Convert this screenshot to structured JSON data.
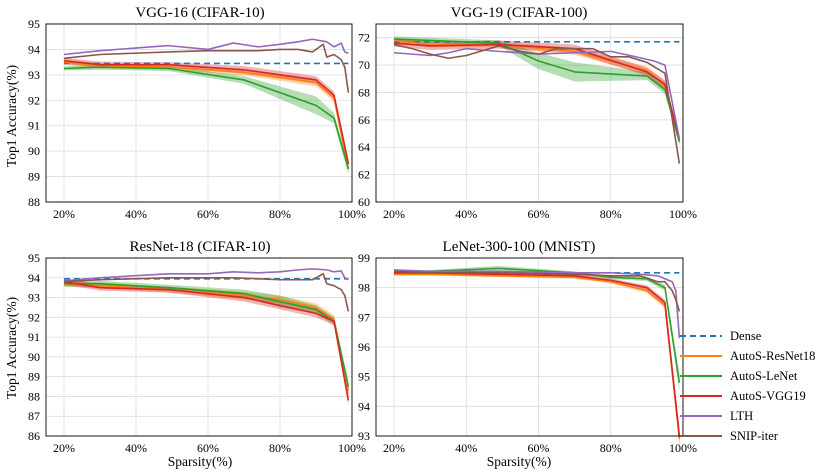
{
  "legend": [
    "Dense",
    "AutoS-ResNet18",
    "AutoS-LeNet",
    "AutoS-VGG19",
    "LTH",
    "SNIP-iter"
  ],
  "colors": {
    "Dense": "#1f77b4",
    "AutoS-ResNet18": "#ff7f0e",
    "AutoS-LeNet": "#2ca02c",
    "AutoS-VGG19": "#d62728",
    "LTH": "#9467bd",
    "SNIP-iter": "#8c564b"
  },
  "chart_data": [
    {
      "type": "line",
      "title": "VGG-16 (CIFAR-10)",
      "xlabel": "",
      "ylabel": "Top1 Accuracy(%)",
      "xlim": [
        15,
        100
      ],
      "ylim": [
        88,
        95
      ],
      "xticks": [
        20,
        40,
        60,
        80,
        100
      ],
      "xtick_labels": [
        "20%",
        "40%",
        "60%",
        "80%",
        "100%"
      ],
      "yticks": [
        88,
        89,
        90,
        91,
        92,
        93,
        94,
        95
      ],
      "ytick_labels": [
        "88",
        "89",
        "90",
        "91",
        "92",
        "93",
        "94",
        "95"
      ],
      "series": [
        {
          "name": "Dense",
          "x": [
            20,
            99
          ],
          "y": [
            93.45,
            93.45
          ],
          "dashed": true
        },
        {
          "name": "AutoS-ResNet18",
          "x": [
            20,
            30,
            49,
            70,
            90,
            95,
            99
          ],
          "y": [
            93.5,
            93.35,
            93.3,
            93.1,
            92.7,
            92.1,
            89.3
          ],
          "band": [
            0.12,
            0.1,
            0.1,
            0.12,
            0.15,
            0.15,
            0.2
          ]
        },
        {
          "name": "AutoS-LeNet",
          "x": [
            20,
            30,
            49,
            70,
            90,
            95,
            99
          ],
          "y": [
            93.25,
            93.3,
            93.25,
            92.8,
            91.8,
            91.3,
            89.3
          ],
          "band": [
            0.08,
            0.1,
            0.1,
            0.15,
            0.35,
            0.2,
            0.2
          ]
        },
        {
          "name": "AutoS-VGG19",
          "x": [
            20,
            30,
            49,
            70,
            90,
            95,
            99
          ],
          "y": [
            93.55,
            93.4,
            93.4,
            93.2,
            92.8,
            92.2,
            89.5
          ],
          "band": [
            0.12,
            0.12,
            0.1,
            0.15,
            0.15,
            0.15,
            0.2
          ]
        },
        {
          "name": "LTH",
          "x": [
            20,
            30,
            49,
            60,
            67,
            74,
            80,
            85,
            89,
            93,
            95,
            97,
            98,
            99
          ],
          "y": [
            93.8,
            93.95,
            94.15,
            94.0,
            94.25,
            94.1,
            94.2,
            94.3,
            94.4,
            94.3,
            94.1,
            94.25,
            93.9,
            93.85
          ]
        },
        {
          "name": "SNIP-iter",
          "x": [
            20,
            30,
            49,
            60,
            67,
            74,
            80,
            85,
            89,
            92,
            93,
            95,
            97,
            98,
            99
          ],
          "y": [
            93.65,
            93.8,
            93.9,
            93.95,
            93.95,
            93.95,
            94.0,
            94.0,
            93.9,
            94.2,
            93.7,
            93.8,
            93.6,
            93.3,
            92.3
          ]
        }
      ]
    },
    {
      "type": "line",
      "title": "VGG-19 (CIFAR-100)",
      "xlabel": "",
      "ylabel": "",
      "xlim": [
        15,
        100
      ],
      "ylim": [
        60,
        73
      ],
      "xticks": [
        20,
        40,
        60,
        80,
        100
      ],
      "xtick_labels": [
        "20%",
        "40%",
        "60%",
        "80%",
        "100%"
      ],
      "yticks": [
        60,
        62,
        64,
        66,
        68,
        70,
        72
      ],
      "ytick_labels": [
        "60",
        "62",
        "64",
        "66",
        "68",
        "70",
        "72"
      ],
      "series": [
        {
          "name": "Dense",
          "x": [
            20,
            99
          ],
          "y": [
            71.7,
            71.7
          ],
          "dashed": true
        },
        {
          "name": "AutoS-ResNet18",
          "x": [
            20,
            30,
            49,
            70,
            90,
            95,
            99
          ],
          "y": [
            71.8,
            71.5,
            71.5,
            71.0,
            69.6,
            68.5,
            64.5
          ],
          "band": [
            0.2,
            0.2,
            0.2,
            0.25,
            0.3,
            0.3,
            0.3
          ]
        },
        {
          "name": "AutoS-LeNet",
          "x": [
            20,
            30,
            49,
            60,
            70,
            90,
            95,
            99
          ],
          "y": [
            71.9,
            71.8,
            71.6,
            70.3,
            69.5,
            69.2,
            68.2,
            64.4
          ],
          "band": [
            0.2,
            0.2,
            0.2,
            0.6,
            0.7,
            0.3,
            0.3,
            0.3
          ]
        },
        {
          "name": "AutoS-VGG19",
          "x": [
            20,
            30,
            49,
            70,
            90,
            95,
            99
          ],
          "y": [
            71.6,
            71.4,
            71.5,
            71.2,
            69.5,
            68.6,
            64.6
          ],
          "band": [
            0.25,
            0.3,
            0.3,
            0.3,
            0.3,
            0.3,
            0.3
          ]
        },
        {
          "name": "LTH",
          "x": [
            20,
            30,
            35,
            40,
            49,
            60,
            70,
            80,
            87,
            92,
            95,
            99
          ],
          "y": [
            70.9,
            70.7,
            70.9,
            71.2,
            71.0,
            70.8,
            70.9,
            71.0,
            70.6,
            70.3,
            70.0,
            64.6
          ]
        },
        {
          "name": "SNIP-iter",
          "x": [
            20,
            25,
            30,
            35,
            40,
            49,
            55,
            60,
            65,
            70,
            75,
            80,
            85,
            90,
            95,
            99
          ],
          "y": [
            71.5,
            71.2,
            70.8,
            70.5,
            70.7,
            71.4,
            71.0,
            70.8,
            71.2,
            71.2,
            71.2,
            70.6,
            70.6,
            70.2,
            69.4,
            62.8
          ]
        }
      ]
    },
    {
      "type": "line",
      "title": "ResNet-18 (CIFAR-10)",
      "xlabel": "Sparsity(%)",
      "ylabel": "Top1 Accuracy(%)",
      "xlim": [
        15,
        100
      ],
      "ylim": [
        86,
        95
      ],
      "xticks": [
        20,
        40,
        60,
        80,
        100
      ],
      "xtick_labels": [
        "20%",
        "40%",
        "60%",
        "80%",
        "100%"
      ],
      "yticks": [
        86,
        87,
        88,
        89,
        90,
        91,
        92,
        93,
        94,
        95
      ],
      "ytick_labels": [
        "86",
        "87",
        "88",
        "89",
        "90",
        "91",
        "92",
        "93",
        "94",
        "95"
      ],
      "series": [
        {
          "name": "Dense",
          "x": [
            20,
            99
          ],
          "y": [
            93.95,
            93.95
          ],
          "dashed": true
        },
        {
          "name": "AutoS-ResNet18",
          "x": [
            20,
            30,
            49,
            70,
            80,
            90,
            95,
            99
          ],
          "y": [
            93.7,
            93.6,
            93.4,
            93.1,
            92.9,
            92.5,
            91.9,
            88.3
          ],
          "band": [
            0.15,
            0.15,
            0.15,
            0.2,
            0.2,
            0.2,
            0.2,
            0.3
          ]
        },
        {
          "name": "AutoS-LeNet",
          "x": [
            20,
            30,
            49,
            70,
            80,
            90,
            95,
            99
          ],
          "y": [
            93.7,
            93.7,
            93.5,
            93.2,
            92.8,
            92.4,
            91.8,
            88.5
          ],
          "band": [
            0.15,
            0.15,
            0.15,
            0.2,
            0.3,
            0.2,
            0.2,
            0.3
          ]
        },
        {
          "name": "AutoS-VGG19",
          "x": [
            20,
            30,
            49,
            70,
            80,
            90,
            95,
            99
          ],
          "y": [
            93.8,
            93.5,
            93.4,
            93.0,
            92.6,
            92.2,
            91.8,
            87.8
          ],
          "band": [
            0.15,
            0.15,
            0.15,
            0.2,
            0.2,
            0.2,
            0.2,
            0.3
          ]
        },
        {
          "name": "LTH",
          "x": [
            20,
            30,
            49,
            60,
            67,
            74,
            80,
            85,
            89,
            93,
            95,
            97,
            98,
            99
          ],
          "y": [
            93.85,
            94.0,
            94.2,
            94.2,
            94.3,
            94.25,
            94.3,
            94.4,
            94.45,
            94.4,
            94.3,
            94.35,
            94.0,
            93.9
          ]
        },
        {
          "name": "SNIP-iter",
          "x": [
            20,
            30,
            49,
            60,
            67,
            74,
            80,
            85,
            89,
            92,
            93,
            95,
            97,
            98,
            99
          ],
          "y": [
            93.8,
            93.9,
            94.0,
            94.0,
            94.0,
            93.95,
            93.9,
            93.9,
            93.9,
            94.2,
            93.7,
            93.6,
            93.4,
            93.1,
            92.3
          ]
        }
      ]
    },
    {
      "type": "line",
      "title": "LeNet-300-100 (MNIST)",
      "xlabel": "Sparsity(%)",
      "ylabel": "",
      "xlim": [
        15,
        100
      ],
      "ylim": [
        93,
        99
      ],
      "xticks": [
        20,
        40,
        60,
        80,
        100
      ],
      "xtick_labels": [
        "20%",
        "40%",
        "60%",
        "80%",
        "100%"
      ],
      "yticks": [
        93,
        94,
        95,
        96,
        97,
        98,
        99
      ],
      "ytick_labels": [
        "93",
        "94",
        "95",
        "96",
        "97",
        "98",
        "99"
      ],
      "series": [
        {
          "name": "Dense",
          "x": [
            20,
            99
          ],
          "y": [
            98.5,
            98.5
          ],
          "dashed": true
        },
        {
          "name": "AutoS-ResNet18",
          "x": [
            20,
            30,
            49,
            70,
            80,
            90,
            95,
            99
          ],
          "y": [
            98.45,
            98.45,
            98.4,
            98.35,
            98.2,
            97.9,
            97.4,
            92.9
          ],
          "band": [
            0.05,
            0.05,
            0.05,
            0.05,
            0.06,
            0.08,
            0.1,
            0.3
          ]
        },
        {
          "name": "AutoS-LeNet",
          "x": [
            20,
            30,
            49,
            70,
            80,
            90,
            95,
            99
          ],
          "y": [
            98.5,
            98.55,
            98.65,
            98.5,
            98.35,
            98.3,
            98.0,
            94.8
          ],
          "band": [
            0.05,
            0.05,
            0.08,
            0.05,
            0.06,
            0.08,
            0.1,
            0.3
          ]
        },
        {
          "name": "AutoS-VGG19",
          "x": [
            20,
            30,
            49,
            70,
            80,
            90,
            95,
            99
          ],
          "y": [
            98.5,
            98.5,
            98.45,
            98.4,
            98.25,
            98.0,
            97.5,
            93.0
          ],
          "band": [
            0.05,
            0.05,
            0.05,
            0.05,
            0.06,
            0.08,
            0.1,
            0.3
          ]
        },
        {
          "name": "LTH",
          "x": [
            20,
            30,
            49,
            70,
            80,
            88,
            93,
            95,
            97,
            98,
            99
          ],
          "y": [
            98.6,
            98.55,
            98.55,
            98.5,
            98.5,
            98.45,
            98.4,
            98.3,
            98.2,
            97.9,
            96.3
          ]
        },
        {
          "name": "SNIP-iter",
          "x": [
            20,
            30,
            49,
            70,
            80,
            88,
            93,
            95,
            97,
            98,
            99
          ],
          "y": [
            98.55,
            98.5,
            98.5,
            98.45,
            98.4,
            98.4,
            98.2,
            98.2,
            97.9,
            97.6,
            97.2
          ]
        }
      ]
    }
  ]
}
